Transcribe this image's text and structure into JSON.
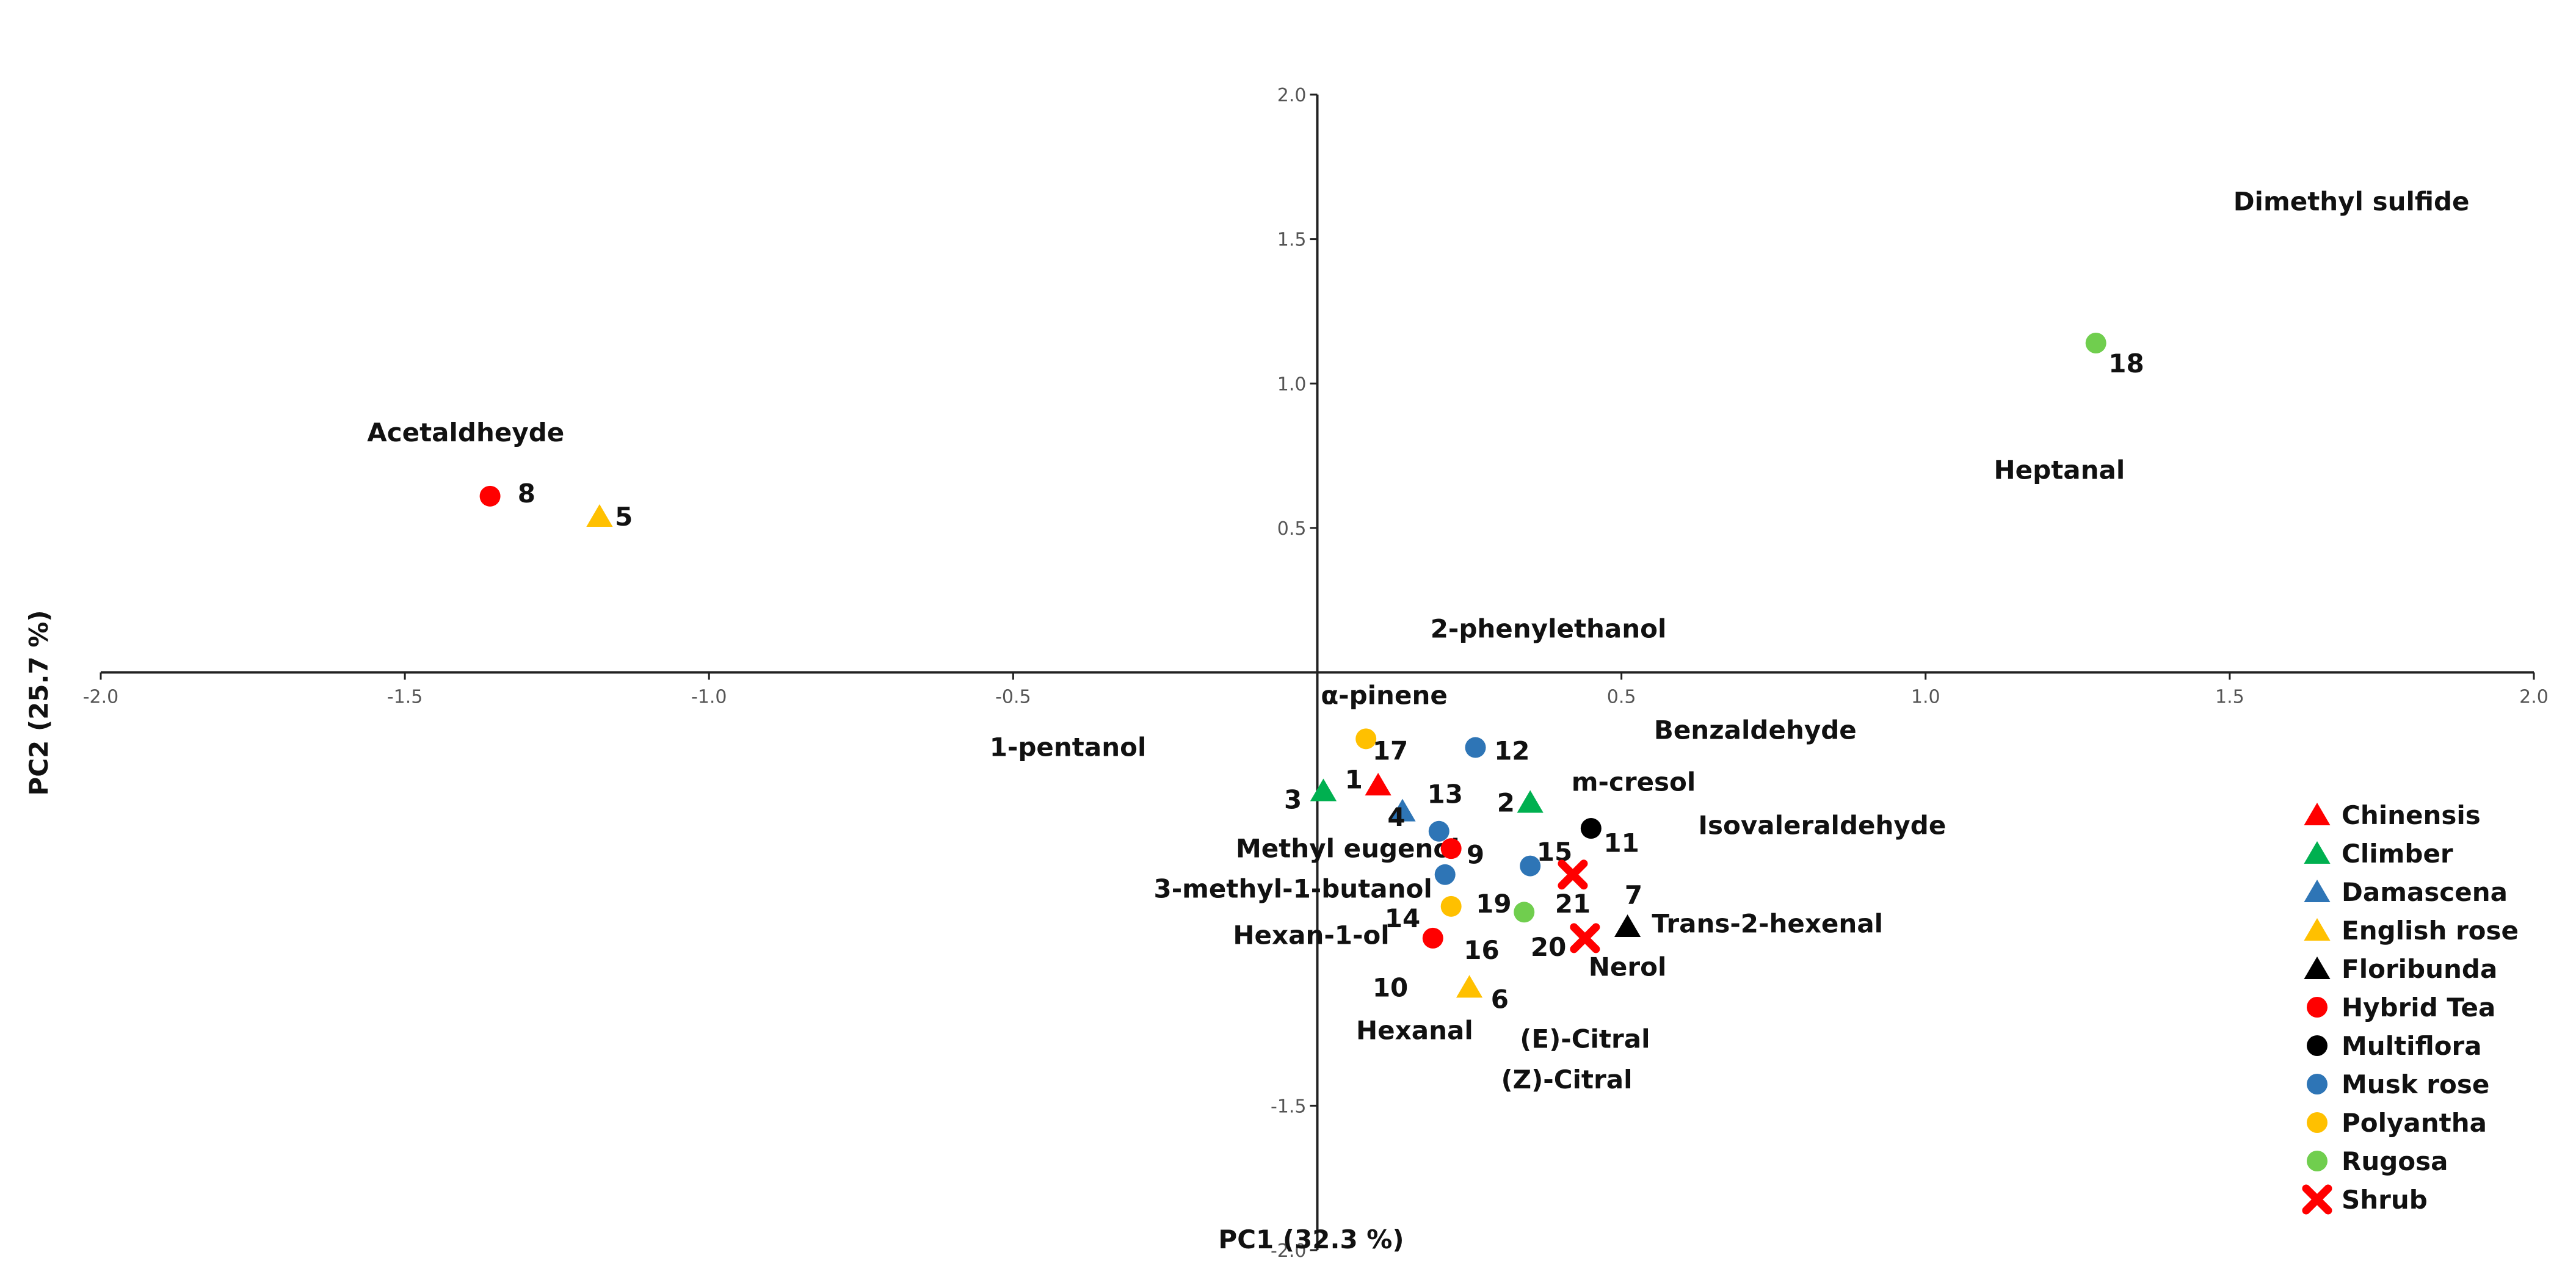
{
  "chart_data": {
    "type": "scatter",
    "title": "",
    "xlabel": "PC1 (32.3 %)",
    "ylabel": "PC2 (25.7 %)",
    "xlim": [
      -2.0,
      2.0
    ],
    "ylim": [
      -2.0,
      2.0
    ],
    "xticks": [
      "-2.0",
      "-1.5",
      "-1.0",
      "-0.5",
      "0.5",
      "1.0",
      "1.5",
      "2.0"
    ],
    "yticks": [
      "2.0",
      "1.5",
      "1.0",
      "0.5",
      "-1.5",
      "-2.0"
    ],
    "grid": false,
    "legend_position": "right",
    "groups": [
      {
        "name": "Chinensis",
        "color": "#ff0000",
        "marker": "triangle"
      },
      {
        "name": "Climber",
        "color": "#00b050",
        "marker": "triangle"
      },
      {
        "name": "Damascena",
        "color": "#2e75b6",
        "marker": "triangle"
      },
      {
        "name": "English rose",
        "color": "#ffc000",
        "marker": "triangle"
      },
      {
        "name": "Floribunda",
        "color": "#000000",
        "marker": "triangle"
      },
      {
        "name": "Hybrid Tea",
        "color": "#ff0000",
        "marker": "circle"
      },
      {
        "name": "Multiflora",
        "color": "#000000",
        "marker": "circle"
      },
      {
        "name": "Musk rose",
        "color": "#2e75b6",
        "marker": "circle"
      },
      {
        "name": "Polyantha",
        "color": "#ffc000",
        "marker": "circle"
      },
      {
        "name": "Rugosa",
        "color": "#70ce4e",
        "marker": "circle"
      },
      {
        "name": "Shrub",
        "color": "#ff0000",
        "marker": "cross"
      }
    ],
    "points": [
      {
        "label": "1",
        "group": "Chinensis",
        "x": 0.1,
        "y": -0.39,
        "lx": 0.06,
        "ly": -0.37
      },
      {
        "label": "2",
        "group": "Climber",
        "x": 0.35,
        "y": -0.45,
        "lx": 0.31,
        "ly": -0.45
      },
      {
        "label": "3",
        "group": "Climber",
        "x": 0.01,
        "y": -0.41,
        "lx": -0.04,
        "ly": -0.44
      },
      {
        "label": "4",
        "group": "Damascena",
        "x": 0.14,
        "y": -0.48,
        "lx": 0.13,
        "ly": -0.5
      },
      {
        "label": "5",
        "group": "English rose",
        "x": -1.18,
        "y": 0.54,
        "lx": -1.14,
        "ly": 0.54
      },
      {
        "label": "6",
        "group": "English rose",
        "x": 0.25,
        "y": -1.09,
        "lx": 0.3,
        "ly": -1.13
      },
      {
        "label": "7",
        "group": "Floribunda",
        "x": 0.51,
        "y": -0.88,
        "lx": 0.52,
        "ly": -0.77
      },
      {
        "label": "8",
        "group": "Hybrid Tea",
        "x": -1.36,
        "y": 0.61,
        "lx": -1.3,
        "ly": 0.62
      },
      {
        "label": "9",
        "group": "Hybrid Tea",
        "x": 0.22,
        "y": -0.61,
        "lx": 0.26,
        "ly": -0.63
      },
      {
        "label": "10",
        "group": "Hybrid Tea",
        "x": 0.19,
        "y": -0.92,
        "lx": 0.12,
        "ly": -1.09
      },
      {
        "label": "11",
        "group": "Multiflora",
        "x": 0.45,
        "y": -0.54,
        "lx": 0.5,
        "ly": -0.59
      },
      {
        "label": "12",
        "group": "Musk rose",
        "x": 0.26,
        "y": -0.26,
        "lx": 0.32,
        "ly": -0.27
      },
      {
        "label": "13",
        "group": "Musk rose",
        "x": 0.2,
        "y": -0.55,
        "lx": 0.21,
        "ly": -0.42
      },
      {
        "label": "14",
        "group": "Musk rose",
        "x": 0.21,
        "y": -0.7,
        "lx": 0.14,
        "ly": -0.85
      },
      {
        "label": "15",
        "group": "Musk rose",
        "x": 0.35,
        "y": -0.67,
        "lx": 0.39,
        "ly": -0.62
      },
      {
        "label": "16",
        "group": "Polyantha",
        "x": 0.22,
        "y": -0.81,
        "lx": 0.27,
        "ly": -0.96
      },
      {
        "label": "17",
        "group": "Polyantha",
        "x": 0.08,
        "y": -0.23,
        "lx": 0.12,
        "ly": -0.27
      },
      {
        "label": "18",
        "group": "Rugosa",
        "x": 1.28,
        "y": 1.14,
        "lx": 1.33,
        "ly": 1.07
      },
      {
        "label": "19",
        "group": "Rugosa",
        "x": 0.34,
        "y": -0.83,
        "lx": 0.29,
        "ly": -0.8
      },
      {
        "label": "20",
        "group": "Shrub",
        "x": 0.44,
        "y": -0.92,
        "lx": 0.38,
        "ly": -0.95
      },
      {
        "label": "21",
        "group": "Shrub",
        "x": 0.42,
        "y": -0.7,
        "lx": 0.42,
        "ly": -0.8
      }
    ],
    "variables": [
      {
        "label": "Acetaldheyde",
        "x": -1.4,
        "y": 0.8
      },
      {
        "label": "Dimethyl sulfide",
        "x": 1.7,
        "y": 1.6
      },
      {
        "label": "Heptanal",
        "x": 1.22,
        "y": 0.67
      },
      {
        "label": "2-phenylethanol",
        "x": 0.38,
        "y": 0.12
      },
      {
        "label": "α-pinene",
        "x": 0.11,
        "y": -0.11
      },
      {
        "label": "1-pentanol",
        "x": -0.41,
        "y": -0.29
      },
      {
        "label": "Benzaldehyde",
        "x": 0.72,
        "y": -0.23
      },
      {
        "label": "m-cresol",
        "x": 0.52,
        "y": -0.41
      },
      {
        "label": "Isovaleraldehyde",
        "x": 0.83,
        "y": -0.56
      },
      {
        "label": "Methyl eugenol",
        "x": 0.05,
        "y": -0.64
      },
      {
        "label": "3-methyl-1-butanol",
        "x": -0.04,
        "y": -0.78
      },
      {
        "label": "Hexan-1-ol",
        "x": -0.01,
        "y": -0.94
      },
      {
        "label": "Trans-2-hexenal",
        "x": 0.74,
        "y": -0.9
      },
      {
        "label": "Nerol",
        "x": 0.51,
        "y": -1.05
      },
      {
        "label": "Hexanal",
        "x": 0.16,
        "y": -1.27
      },
      {
        "label": "(E)-Citral",
        "x": 0.44,
        "y": -1.3
      },
      {
        "label": "(Z)-Citral",
        "x": 0.41,
        "y": -1.44
      }
    ]
  }
}
